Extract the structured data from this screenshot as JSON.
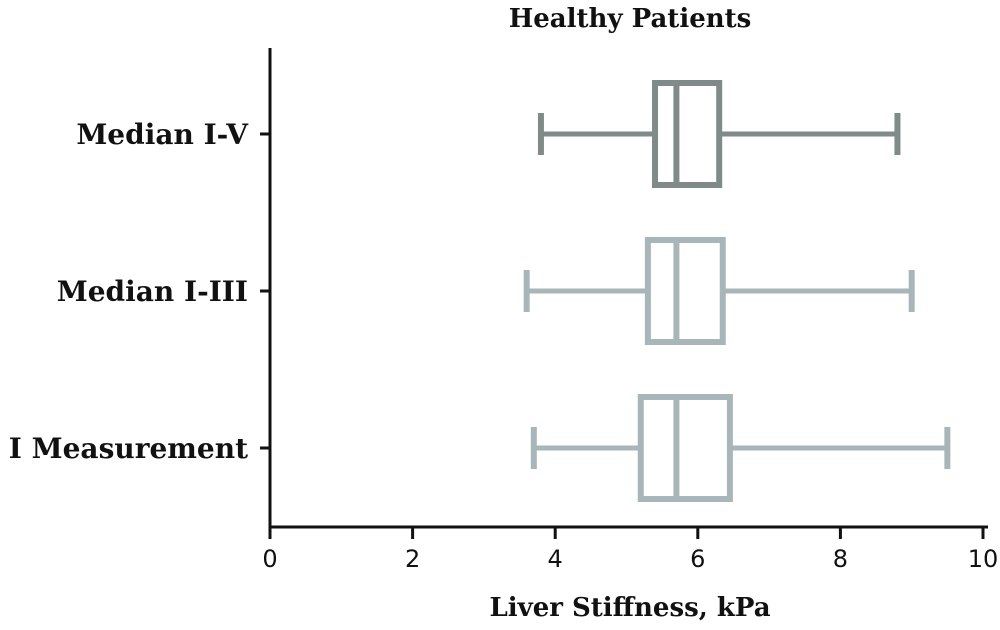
{
  "chart_data": {
    "type": "boxplot",
    "orientation": "horizontal",
    "title": "Healthy Patients",
    "xlabel": "Liver Stiffness, kPa",
    "ylabel": "",
    "xlim": [
      0,
      10
    ],
    "x_ticks": [
      0,
      2,
      4,
      6,
      8,
      10
    ],
    "x_tick_labels": [
      "0",
      "2",
      "4",
      "6",
      "8",
      "10"
    ],
    "grid": false,
    "categories": [
      "Median I-V",
      "Median I-III",
      "I Measurement"
    ],
    "boxes": [
      {
        "label": "Median I-V",
        "min": 3.8,
        "q1": 5.4,
        "median": 5.7,
        "q3": 6.3,
        "max": 8.8,
        "color": "#7f8a89"
      },
      {
        "label": "Median I-III",
        "min": 3.6,
        "q1": 5.3,
        "median": 5.7,
        "q3": 6.35,
        "max": 9.0,
        "color": "#a8b5b9"
      },
      {
        "label": "I Measurement",
        "min": 3.7,
        "q1": 5.2,
        "median": 5.7,
        "q3": 6.45,
        "max": 9.5,
        "color": "#a8b5b9"
      }
    ]
  }
}
